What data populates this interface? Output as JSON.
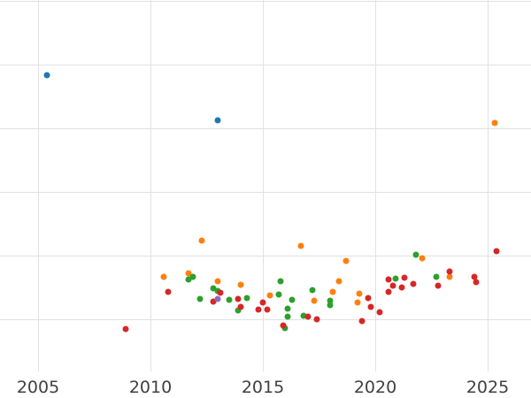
{
  "chart_data": {
    "type": "scatter",
    "title": "",
    "xlabel": "",
    "ylabel": "",
    "grid": true,
    "legend": "none",
    "x_ticks": [
      2005,
      2010,
      2015,
      2020,
      2025
    ],
    "x_tick_labels": [
      "2005",
      "2010",
      "2015",
      "2020",
      "2025"
    ],
    "x_range": [
      2003.3,
      2026.9
    ],
    "y_axis_note": "no y tick labels visible in crop; y values given in gridline units above the bottom axis (1 unit = one gridline spacing)",
    "y_gridlines_units": [
      0.79,
      1.79,
      2.79,
      3.79,
      4.79,
      5.79
    ],
    "series": [
      {
        "name": "blue",
        "color_key": "blue",
        "points": [
          [
            2005.4,
            4.63
          ],
          [
            2013.0,
            3.92
          ]
        ]
      },
      {
        "name": "orange",
        "color_key": "orange",
        "points": [
          [
            2010.6,
            1.46
          ],
          [
            2011.7,
            1.51
          ],
          [
            2012.3,
            2.03
          ],
          [
            2013.0,
            1.39
          ],
          [
            2014.0,
            1.33
          ],
          [
            2015.3,
            1.17
          ],
          [
            2016.7,
            1.94
          ],
          [
            2017.3,
            1.08
          ],
          [
            2018.1,
            1.22
          ],
          [
            2018.4,
            1.39
          ],
          [
            2018.7,
            1.71
          ],
          [
            2019.2,
            1.06
          ],
          [
            2019.3,
            1.19
          ],
          [
            2022.1,
            1.75
          ],
          [
            2023.3,
            1.46
          ],
          [
            2025.3,
            3.88
          ]
        ]
      },
      {
        "name": "green",
        "color_key": "green",
        "points": [
          [
            2011.7,
            1.42
          ],
          [
            2011.9,
            1.46
          ],
          [
            2012.2,
            1.11
          ],
          [
            2012.8,
            1.28
          ],
          [
            2013.0,
            1.24
          ],
          [
            2013.5,
            1.1
          ],
          [
            2013.9,
            0.93
          ],
          [
            2014.3,
            1.13
          ],
          [
            2015.7,
            1.18
          ],
          [
            2015.8,
            1.39
          ],
          [
            2016.0,
            0.65
          ],
          [
            2016.1,
            0.96
          ],
          [
            2016.1,
            0.83
          ],
          [
            2016.3,
            1.1
          ],
          [
            2016.8,
            0.85
          ],
          [
            2017.2,
            1.25
          ],
          [
            2018.0,
            1.08
          ],
          [
            2018.0,
            1.01
          ],
          [
            2020.9,
            1.43
          ],
          [
            2021.8,
            1.81
          ],
          [
            2022.7,
            1.46
          ]
        ]
      },
      {
        "name": "red",
        "color_key": "red",
        "points": [
          [
            2008.9,
            0.64
          ],
          [
            2010.8,
            1.22
          ],
          [
            2012.8,
            1.07
          ],
          [
            2013.1,
            1.21
          ],
          [
            2013.9,
            1.11
          ],
          [
            2014.0,
            0.99
          ],
          [
            2014.8,
            0.94
          ],
          [
            2015.0,
            1.06
          ],
          [
            2015.2,
            0.94
          ],
          [
            2015.9,
            0.69
          ],
          [
            2017.0,
            0.83
          ],
          [
            2017.4,
            0.79
          ],
          [
            2019.4,
            0.76
          ],
          [
            2019.7,
            1.13
          ],
          [
            2019.8,
            0.99
          ],
          [
            2020.2,
            0.9
          ],
          [
            2020.6,
            1.42
          ],
          [
            2020.6,
            1.22
          ],
          [
            2020.8,
            1.32
          ],
          [
            2021.2,
            1.29
          ],
          [
            2021.3,
            1.44
          ],
          [
            2021.7,
            1.35
          ],
          [
            2022.8,
            1.32
          ],
          [
            2023.3,
            1.54
          ],
          [
            2024.4,
            1.46
          ],
          [
            2024.5,
            1.38
          ],
          [
            2025.4,
            1.86
          ]
        ]
      },
      {
        "name": "purple",
        "color_key": "purple",
        "points": [
          [
            2013.0,
            1.11
          ]
        ]
      }
    ]
  },
  "colors": {
    "blue": "#1f77b4",
    "orange": "#ff7f0e",
    "green": "#2ca02c",
    "red": "#d62728",
    "purple": "#9467bd",
    "grid": "#e2e2e2",
    "tick_label": "#404040",
    "background": "#ffffff"
  }
}
